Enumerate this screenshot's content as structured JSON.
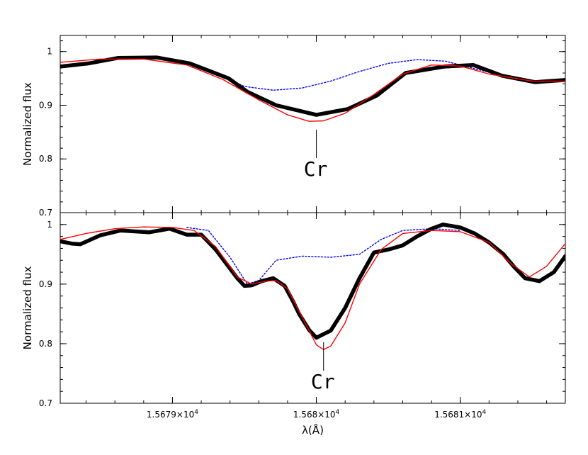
{
  "chart_data": [
    {
      "type": "line",
      "panel": "top",
      "ylabel": "Normalized flux",
      "xlabel": "",
      "xlim": [
        15678.22,
        15681.73
      ],
      "ylim": [
        0.7,
        1.03
      ],
      "y_ticks": [
        "1",
        "0.9",
        "0.8",
        "0.7"
      ],
      "annotation": {
        "text": "Cr",
        "x": 15680.0
      },
      "colors": {
        "observed": "#000000",
        "model": "#ff0000",
        "no_line": "#0000ff"
      },
      "series": [
        {
          "style": "observed-thick-black",
          "x": [
            15678.22,
            15678.42,
            15678.62,
            15678.89,
            15679.12,
            15679.39,
            15679.52,
            15679.72,
            15680.0,
            15680.22,
            15680.42,
            15680.62,
            15680.89,
            15681.09,
            15681.29,
            15681.52,
            15681.73
          ],
          "y": [
            0.972,
            0.978,
            0.988,
            0.989,
            0.978,
            0.95,
            0.925,
            0.9,
            0.882,
            0.893,
            0.918,
            0.96,
            0.972,
            0.975,
            0.955,
            0.943,
            0.947
          ]
        },
        {
          "style": "model-red",
          "x": [
            15678.22,
            15678.5,
            15678.8,
            15679.1,
            15679.35,
            15679.6,
            15679.8,
            15679.95,
            15680.05,
            15680.2,
            15680.4,
            15680.6,
            15680.8,
            15681.0,
            15681.2,
            15681.5,
            15681.73
          ],
          "y": [
            0.98,
            0.986,
            0.986,
            0.975,
            0.948,
            0.91,
            0.882,
            0.87,
            0.871,
            0.885,
            0.92,
            0.958,
            0.975,
            0.973,
            0.958,
            0.945,
            0.945
          ]
        },
        {
          "style": "no-line-dotted-blue",
          "x": [
            15679.12,
            15679.3,
            15679.5,
            15679.7,
            15679.9,
            15680.1,
            15680.3,
            15680.5,
            15680.7,
            15680.9,
            15681.1,
            15681.3,
            15681.5
          ],
          "y": [
            0.978,
            0.96,
            0.935,
            0.928,
            0.932,
            0.945,
            0.963,
            0.978,
            0.985,
            0.982,
            0.968,
            0.955,
            0.946
          ]
        }
      ]
    },
    {
      "type": "line",
      "panel": "bottom",
      "ylabel": "Normalized flux",
      "xlabel": "λ(Å)",
      "xlim": [
        15678.22,
        15681.73
      ],
      "ylim": [
        0.7,
        1.02
      ],
      "x_ticks": [
        {
          "value": 15679,
          "mantissa": "1.5679",
          "times": "×10",
          "exp": "4"
        },
        {
          "value": 15680,
          "mantissa": "1.568",
          "times": "×10",
          "exp": "4"
        },
        {
          "value": 15681,
          "mantissa": "1.5681",
          "times": "×10",
          "exp": "4"
        }
      ],
      "y_ticks": [
        "1",
        "0.9",
        "0.8",
        "0.7"
      ],
      "annotation": {
        "text": "Cr",
        "x": 15680.05
      },
      "colors": {
        "observed": "#000000",
        "model": "#ff0000",
        "no_line": "#0000ff"
      },
      "series": [
        {
          "style": "observed-thick-black",
          "x": [
            15678.22,
            15678.3,
            15678.36,
            15678.5,
            15678.64,
            15678.84,
            15678.98,
            15679.1,
            15679.2,
            15679.3,
            15679.45,
            15679.5,
            15679.55,
            15679.62,
            15679.7,
            15679.78,
            15679.84,
            15679.88,
            15679.95,
            15680.0,
            15680.1,
            15680.2,
            15680.3,
            15680.4,
            15680.5,
            15680.6,
            15680.7,
            15680.8,
            15680.88,
            15681.0,
            15681.1,
            15681.2,
            15681.3,
            15681.37,
            15681.45,
            15681.55,
            15681.65,
            15681.73
          ],
          "y": [
            0.972,
            0.968,
            0.967,
            0.982,
            0.99,
            0.987,
            0.993,
            0.983,
            0.983,
            0.958,
            0.91,
            0.897,
            0.898,
            0.905,
            0.91,
            0.897,
            0.87,
            0.85,
            0.823,
            0.81,
            0.822,
            0.86,
            0.91,
            0.953,
            0.958,
            0.965,
            0.98,
            0.993,
            1.0,
            0.995,
            0.985,
            0.97,
            0.95,
            0.93,
            0.91,
            0.905,
            0.92,
            0.947
          ]
        },
        {
          "style": "model-red",
          "x": [
            15678.22,
            15678.4,
            15678.6,
            15678.8,
            15679.0,
            15679.15,
            15679.3,
            15679.45,
            15679.55,
            15679.65,
            15679.72,
            15679.8,
            15679.9,
            15680.0,
            15680.05,
            15680.1,
            15680.2,
            15680.3,
            15680.45,
            15680.6,
            15680.8,
            15681.0,
            15681.2,
            15681.35,
            15681.48,
            15681.6,
            15681.73
          ],
          "y": [
            0.975,
            0.985,
            0.993,
            0.996,
            0.995,
            0.99,
            0.963,
            0.912,
            0.9,
            0.905,
            0.906,
            0.892,
            0.845,
            0.798,
            0.79,
            0.796,
            0.835,
            0.9,
            0.958,
            0.985,
            0.99,
            0.988,
            0.97,
            0.935,
            0.912,
            0.93,
            0.968
          ]
        },
        {
          "style": "no-line-dotted-blue",
          "x": [
            15679.1,
            15679.25,
            15679.4,
            15679.52,
            15679.6,
            15679.72,
            15679.9,
            15680.1,
            15680.3,
            15680.45,
            15680.6,
            15680.8,
            15681.0
          ],
          "y": [
            0.995,
            0.99,
            0.945,
            0.9,
            0.906,
            0.94,
            0.947,
            0.945,
            0.95,
            0.975,
            0.99,
            0.993,
            0.99
          ]
        }
      ]
    }
  ]
}
